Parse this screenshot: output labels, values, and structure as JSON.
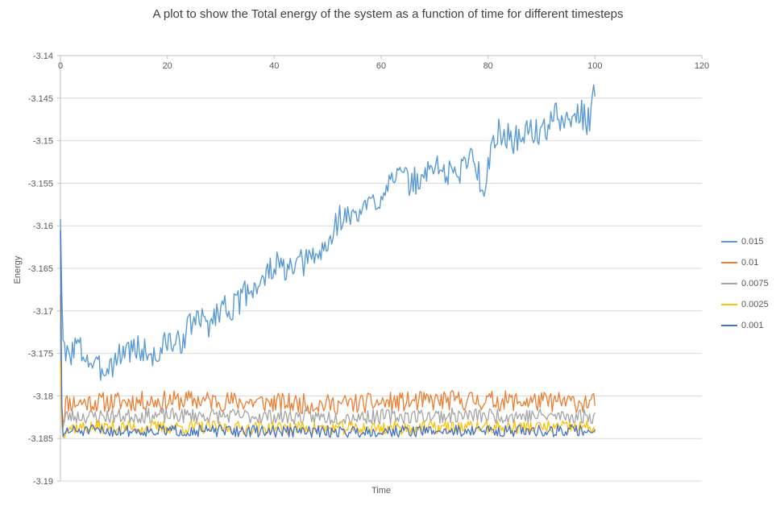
{
  "chart_data": {
    "type": "line",
    "title": "A plot to show the Total energy of the system as a function of time for different timesteps",
    "xlabel": "Time",
    "ylabel": "Energy",
    "xlim": [
      0,
      120
    ],
    "ylim": [
      -3.19,
      -3.14
    ],
    "x_ticks": [
      0,
      20,
      40,
      60,
      80,
      100,
      120
    ],
    "x_tick_labels": [
      "0",
      "20",
      "40",
      "60",
      "80",
      "100",
      "120"
    ],
    "y_ticks": [
      -3.14,
      -3.145,
      -3.15,
      -3.155,
      -3.16,
      -3.165,
      -3.17,
      -3.175,
      -3.18,
      -3.185,
      -3.19
    ],
    "y_tick_labels": [
      "-3.14",
      "-3.145",
      "-3.15",
      "-3.155",
      "-3.16",
      "-3.165",
      "-3.17",
      "-3.175",
      "-3.18",
      "-3.185",
      "-3.19"
    ],
    "grid": "horizontal",
    "gridline_color": "#d9d9d9",
    "axis_line_color": "#bfbfbf",
    "legend_position": "right",
    "sample_step": 0.25,
    "series": [
      {
        "name": "0.015",
        "color": "#5b9bd5",
        "width": 1.4,
        "noise": 0.0017,
        "seed": 3,
        "anchors": [
          [
            0,
            -3.159
          ],
          [
            0.4,
            -3.1735
          ],
          [
            1,
            -3.1755
          ],
          [
            3,
            -3.174
          ],
          [
            5,
            -3.1755
          ],
          [
            7,
            -3.177
          ],
          [
            10,
            -3.176
          ],
          [
            12,
            -3.1745
          ],
          [
            15,
            -3.1745
          ],
          [
            18,
            -3.1755
          ],
          [
            20,
            -3.1735
          ],
          [
            22,
            -3.174
          ],
          [
            25,
            -3.171
          ],
          [
            28,
            -3.1715
          ],
          [
            30,
            -3.1695
          ],
          [
            33,
            -3.1695
          ],
          [
            35,
            -3.1675
          ],
          [
            38,
            -3.1665
          ],
          [
            40,
            -3.1645
          ],
          [
            43,
            -3.1655
          ],
          [
            45,
            -3.1645
          ],
          [
            48,
            -3.1635
          ],
          [
            50,
            -3.1625
          ],
          [
            52,
            -3.159
          ],
          [
            55,
            -3.159
          ],
          [
            58,
            -3.1575
          ],
          [
            60,
            -3.1565
          ],
          [
            62,
            -3.1535
          ],
          [
            65,
            -3.155
          ],
          [
            68,
            -3.1545
          ],
          [
            70,
            -3.1525
          ],
          [
            72,
            -3.154
          ],
          [
            75,
            -3.1535
          ],
          [
            77,
            -3.151
          ],
          [
            79,
            -3.156
          ],
          [
            80,
            -3.1525
          ],
          [
            82,
            -3.149
          ],
          [
            85,
            -3.15
          ],
          [
            88,
            -3.1485
          ],
          [
            90,
            -3.1495
          ],
          [
            92,
            -3.147
          ],
          [
            95,
            -3.148
          ],
          [
            97,
            -3.1465
          ],
          [
            99,
            -3.148
          ],
          [
            100,
            -3.1435
          ]
        ]
      },
      {
        "name": "0.01",
        "color": "#ed7d31",
        "width": 1.3,
        "noise": 0.0012,
        "seed": 11,
        "anchors": [
          [
            0,
            -3.168
          ],
          [
            0.3,
            -3.1838
          ],
          [
            1,
            -3.1808
          ],
          [
            25,
            -3.1805
          ],
          [
            50,
            -3.181
          ],
          [
            75,
            -3.1805
          ],
          [
            100,
            -3.1808
          ]
        ]
      },
      {
        "name": "0.0075",
        "color": "#a5a5a5",
        "width": 1.3,
        "noise": 0.0009,
        "seed": 23,
        "anchors": [
          [
            0,
            -3.1715
          ],
          [
            0.3,
            -3.1842
          ],
          [
            1,
            -3.1824
          ],
          [
            25,
            -3.1823
          ],
          [
            50,
            -3.1825
          ],
          [
            75,
            -3.1823
          ],
          [
            100,
            -3.1824
          ]
        ]
      },
      {
        "name": "0.0025",
        "color": "#ffc000",
        "width": 1.3,
        "noise": 0.0008,
        "seed": 37,
        "anchors": [
          [
            0,
            -3.176
          ],
          [
            0.3,
            -3.185
          ],
          [
            1,
            -3.1837
          ],
          [
            25,
            -3.1837
          ],
          [
            50,
            -3.1838
          ],
          [
            75,
            -3.1837
          ],
          [
            100,
            -3.1837
          ]
        ]
      },
      {
        "name": "0.001",
        "color": "#4472c4",
        "width": 1.3,
        "noise": 0.0007,
        "seed": 51,
        "anchors": [
          [
            0,
            -3.1605
          ],
          [
            0.3,
            -3.1852
          ],
          [
            1,
            -3.1841
          ],
          [
            25,
            -3.1841
          ],
          [
            50,
            -3.1842
          ],
          [
            75,
            -3.1841
          ],
          [
            100,
            -3.1841
          ]
        ]
      }
    ]
  }
}
